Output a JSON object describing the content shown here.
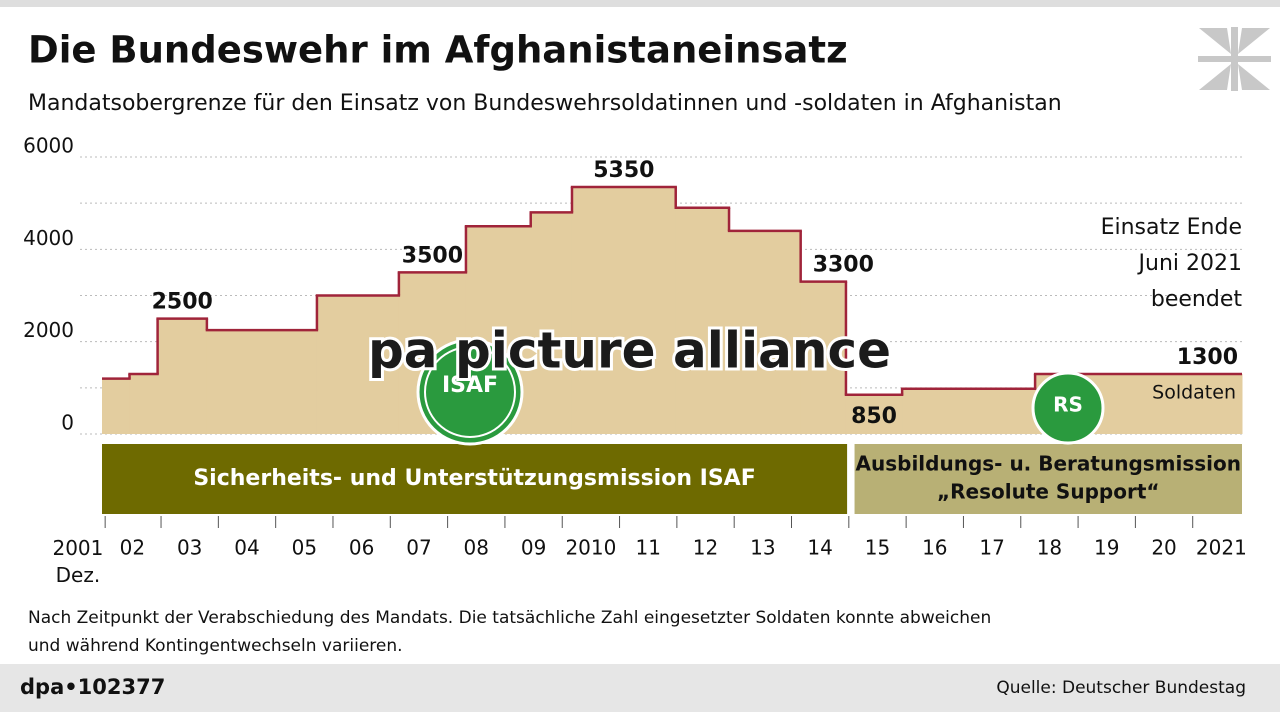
{
  "header": {
    "title": "Die Bundeswehr im Afghanistaneinsatz",
    "subtitle": "Mandatsobergrenze für den Einsatz von Bundeswehrsoldatinnen und -soldaten in Afghanistan"
  },
  "chart_data": {
    "type": "step",
    "x": [
      2001.97,
      2002.45,
      2002.94,
      2003.8,
      2005.72,
      2007.15,
      2008.32,
      2009.45,
      2010.17,
      2011.98,
      2012.91,
      2014.16,
      2014.95,
      2015.93,
      2018.25
    ],
    "values": [
      1200,
      1300,
      2500,
      2250,
      3000,
      3500,
      4500,
      4800,
      5350,
      4900,
      4400,
      3300,
      850,
      980,
      1300
    ],
    "value_labels": [
      null,
      null,
      "2500",
      null,
      null,
      "3500",
      null,
      null,
      "5350",
      null,
      null,
      "3300",
      "850",
      null,
      "1300"
    ],
    "color": "#a0243a",
    "fill": "#e3cd9f",
    "xlim": [
      2001.97,
      2021.86
    ],
    "ylim": [
      0,
      6000
    ],
    "yticks": [
      0,
      2000,
      4000,
      6000
    ],
    "minor_yticks": [
      1000,
      3000,
      5000
    ],
    "grid": true,
    "xticks": [
      {
        "value": 2001.55,
        "label": "2001 Dez."
      },
      {
        "value": 2002.5,
        "label": "02"
      },
      {
        "value": 2003.5,
        "label": "03"
      },
      {
        "value": 2004.5,
        "label": "04"
      },
      {
        "value": 2005.5,
        "label": "05"
      },
      {
        "value": 2006.5,
        "label": "06"
      },
      {
        "value": 2007.5,
        "label": "07"
      },
      {
        "value": 2008.5,
        "label": "08"
      },
      {
        "value": 2009.5,
        "label": "09"
      },
      {
        "value": 2010.5,
        "label": "2010"
      },
      {
        "value": 2011.5,
        "label": "11"
      },
      {
        "value": 2012.5,
        "label": "12"
      },
      {
        "value": 2013.5,
        "label": "13"
      },
      {
        "value": 2014.5,
        "label": "14"
      },
      {
        "value": 2015.5,
        "label": "15"
      },
      {
        "value": 2016.5,
        "label": "16"
      },
      {
        "value": 2017.5,
        "label": "17"
      },
      {
        "value": 2018.5,
        "label": "18"
      },
      {
        "value": 2019.5,
        "label": "19"
      },
      {
        "value": 2020.5,
        "label": "20"
      },
      {
        "value": 2021.5,
        "label": "2021"
      }
    ],
    "missions": [
      {
        "lines": [
          "Sicherheits- und Unterstützungsmission ISAF"
        ],
        "start": 2001.97,
        "end": 2014.97,
        "color": "#6e6a00",
        "text_color": "#ffffff"
      },
      {
        "lines": [
          "Ausbildungs- u. Beratungsmission",
          "„Resolute Support“"
        ],
        "start": 2015.1,
        "end": 2021.86,
        "color": "#b8b075",
        "text_color": "#111111"
      }
    ],
    "annotations": {
      "end_note": [
        "Einsatz Ende",
        "Juni 2021",
        "beendet"
      ],
      "unit": "Soldaten"
    },
    "logos": {
      "isaf": "ISAF",
      "rs": "RS"
    }
  },
  "watermark": "pa picture alliance",
  "footer": {
    "note": [
      "Nach Zeitpunkt der Verabschiedung des Mandats. Die tatsächliche Zahl eingesetzter Soldaten konnte abweichen",
      "und während Kontingentwechseln variieren."
    ],
    "id": "dpa•102377",
    "source": "Quelle: Deutscher Bundestag"
  }
}
